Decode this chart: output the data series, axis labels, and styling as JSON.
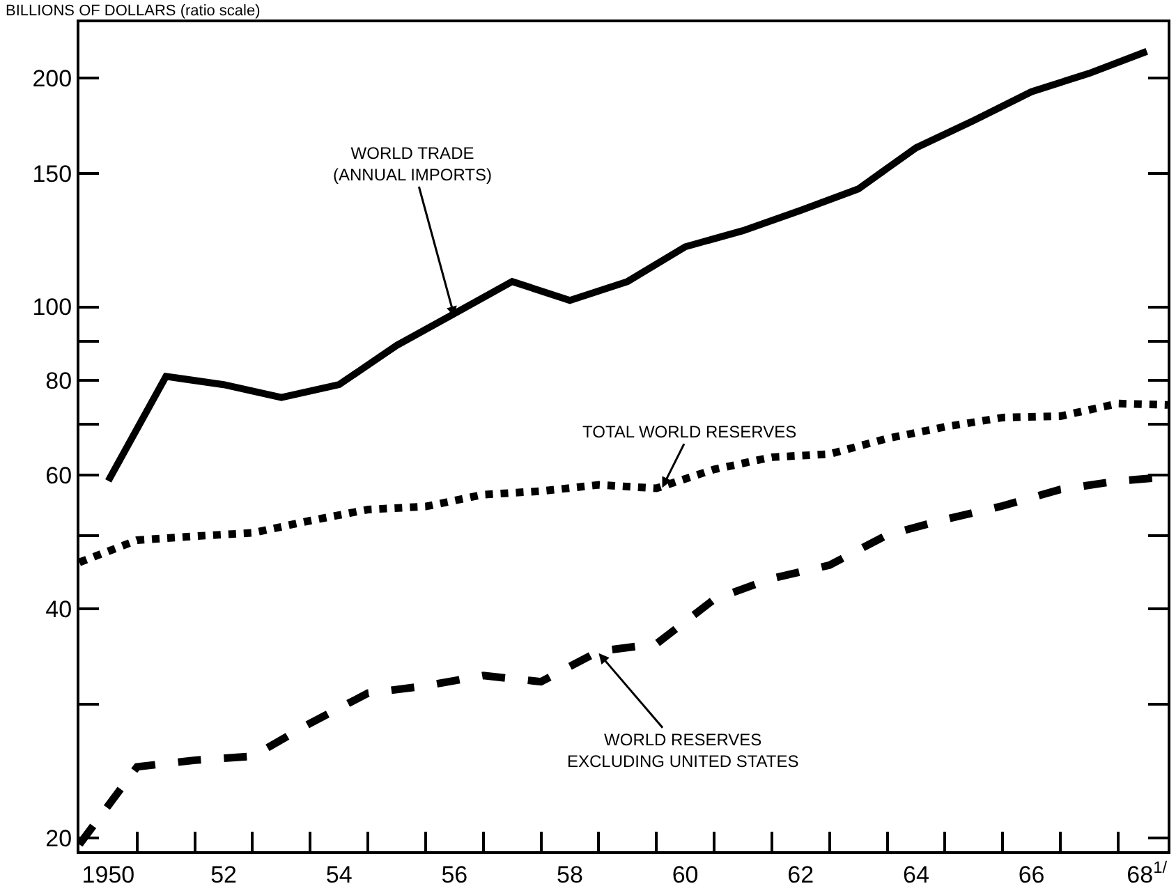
{
  "chart_data": {
    "type": "line",
    "ylabel": "BILLIONS OF DOLLARS (ratio scale)",
    "log": true,
    "marker": "none",
    "xlim": [
      1949.5,
      1968.36
    ],
    "ylim": [
      19.2,
      237
    ],
    "xticks": [
      {
        "value": 1950,
        "label": "1950"
      },
      {
        "value": 1952,
        "label": "52"
      },
      {
        "value": 1954,
        "label": "54"
      },
      {
        "value": 1956,
        "label": "56"
      },
      {
        "value": 1958,
        "label": "58"
      },
      {
        "value": 1960,
        "label": "60"
      },
      {
        "value": 1962,
        "label": "62"
      },
      {
        "value": 1964,
        "label": "64"
      },
      {
        "value": 1966,
        "label": "66"
      },
      {
        "value": 1968,
        "label": "68$^{1/}$"
      },
      {
        "value": 1950.5,
        "label": null
      },
      {
        "value": 1951.5,
        "label": null
      },
      {
        "value": 1952.5,
        "label": null
      },
      {
        "value": 1953.5,
        "label": null
      },
      {
        "value": 1954.5,
        "label": null
      },
      {
        "value": 1955.5,
        "label": null
      },
      {
        "value": 1956.5,
        "label": null
      },
      {
        "value": 1957.5,
        "label": null
      },
      {
        "value": 1958.5,
        "label": null
      },
      {
        "value": 1959.5,
        "label": null
      },
      {
        "value": 1960.5,
        "label": null
      },
      {
        "value": 1961.5,
        "label": null
      },
      {
        "value": 1962.5,
        "label": null
      },
      {
        "value": 1963.5,
        "label": null
      },
      {
        "value": 1964.5,
        "label": null
      },
      {
        "value": 1965.5,
        "label": null
      },
      {
        "value": 1966.5,
        "label": null
      },
      {
        "value": 1967.5,
        "label": null
      }
    ],
    "yticks": [
      20,
      {
        "value": 30,
        "label": null
      },
      40,
      {
        "value": 50,
        "label": null
      },
      60,
      {
        "value": 70,
        "label": null
      },
      80,
      {
        "value": 90,
        "label": null
      },
      100,
      150,
      200
    ],
    "series": [
      {
        "color": "#000000",
        "line_style": "solid",
        "x": [
          1950,
          1951,
          1952,
          1953,
          1954,
          1955,
          1956,
          1957,
          1958,
          1959,
          1960,
          1961,
          1962,
          1963,
          1964,
          1965,
          1966,
          1967,
          1968
        ],
        "values": [
          59,
          81,
          79,
          76,
          79,
          89,
          98,
          108,
          102,
          108,
          120,
          126,
          134,
          143,
          162,
          176,
          192,
          203,
          217
        ]
      },
      {
        "color": "#000000",
        "line_style": "dotted",
        "x": [
          1949.5,
          1950.5,
          1951.5,
          1952.5,
          1953.5,
          1954.5,
          1955.5,
          1956.5,
          1957.5,
          1958.5,
          1959.5,
          1960.5,
          1961.5,
          1962.5,
          1963.5,
          1964.5,
          1965.5,
          1966.5,
          1967.5,
          1968.36
        ],
        "values": [
          46.1,
          49.3,
          49.9,
          50.4,
          52.3,
          54.1,
          54.6,
          56.6,
          57.2,
          58.3,
          57.7,
          61.1,
          63.4,
          64.0,
          67.1,
          69.5,
          71.5,
          71.8,
          74.6,
          74.3
        ]
      },
      {
        "color": "#000000",
        "line_style": "dashed",
        "x": [
          1949.5,
          1950.5,
          1951.5,
          1952.5,
          1953.5,
          1954.5,
          1955.5,
          1956.5,
          1957.5,
          1958.5,
          1959.5,
          1960.5,
          1961.5,
          1962.5,
          1963.5,
          1964.5,
          1965.5,
          1966.5,
          1967.5,
          1968.36
        ],
        "values": [
          19.6,
          24.8,
          25.3,
          25.6,
          28.3,
          31.0,
          31.7,
          32.7,
          32.1,
          35.2,
          36.0,
          41.2,
          43.9,
          45.7,
          50.1,
          52.5,
          54.7,
          57.5,
          59.0,
          59.7
        ]
      }
    ],
    "annotations": [
      {
        "text": "WORLD TRADE\n(ANNUAL IMPORTS)",
        "x": 1956,
        "y": 97
      },
      {
        "text": "TOTAL WORLD RESERVES",
        "x": 1959.6,
        "y": 57.8
      },
      {
        "text": "WORLD RESERVES\nEXCLUDING UNITED STATES",
        "x": 1958.5,
        "y": 35.0
      }
    ]
  }
}
